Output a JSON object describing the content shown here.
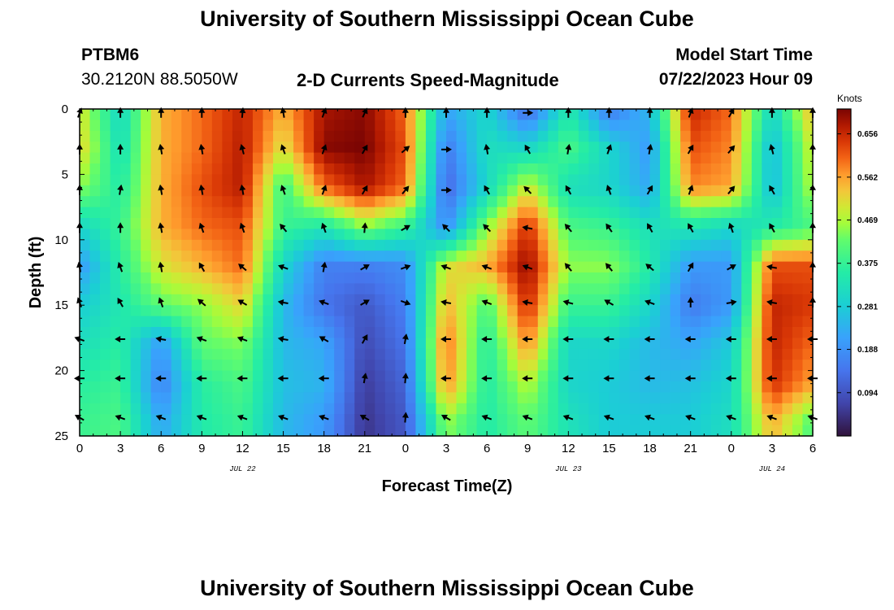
{
  "page": {
    "title": "University of Southern Mississippi Ocean Cube",
    "footer_title": "University of Southern Mississippi Ocean Cube",
    "station": "PTBM6",
    "coordinates": "30.2120N  88.5050W",
    "plot_title": "2-D Currents Speed-Magnitude",
    "model_start_label": "Model Start Time",
    "model_start_value": "07/22/2023 Hour 09"
  },
  "chart_data": {
    "type": "heatmap",
    "title": "2-D Currents Speed-Magnitude",
    "xlabel": "Forecast Time(Z)",
    "ylabel": "Depth (ft)",
    "xlim": [
      0,
      54
    ],
    "ylim": [
      25,
      0
    ],
    "x_ticks": [
      {
        "value": 0,
        "label": "0"
      },
      {
        "value": 3,
        "label": "3"
      },
      {
        "value": 6,
        "label": "6"
      },
      {
        "value": 9,
        "label": "9"
      },
      {
        "value": 12,
        "label": "12"
      },
      {
        "value": 15,
        "label": "15"
      },
      {
        "value": 18,
        "label": "18"
      },
      {
        "value": 21,
        "label": "21"
      },
      {
        "value": 24,
        "label": "0"
      },
      {
        "value": 27,
        "label": "3"
      },
      {
        "value": 30,
        "label": "6"
      },
      {
        "value": 33,
        "label": "9"
      },
      {
        "value": 36,
        "label": "12"
      },
      {
        "value": 39,
        "label": "15"
      },
      {
        "value": 42,
        "label": "18"
      },
      {
        "value": 45,
        "label": "21"
      },
      {
        "value": 48,
        "label": "0"
      },
      {
        "value": 51,
        "label": "3"
      },
      {
        "value": 54,
        "label": "6"
      }
    ],
    "date_labels": [
      {
        "value": 12,
        "label": "JUL 22"
      },
      {
        "value": 36,
        "label": "JUL 23"
      },
      {
        "value": 51,
        "label": "JUL 24"
      }
    ],
    "y_ticks": [
      0,
      5,
      10,
      15,
      20,
      25
    ],
    "colorbar": {
      "label": "Knots",
      "min": 0.0,
      "max": 0.71,
      "ticks": [
        "0.656",
        "0.562",
        "0.469",
        "0.375",
        "0.281",
        "0.188",
        "0.094"
      ]
    },
    "arrow_times": [
      0,
      3,
      6,
      9,
      12,
      15,
      18,
      21,
      24,
      27,
      30,
      33,
      36,
      39,
      42,
      45,
      48,
      51,
      54
    ],
    "arrow_depths": [
      0.3,
      3.1,
      6.2,
      9.1,
      12.1,
      14.8,
      17.6,
      20.6,
      23.6
    ],
    "speed_grid": {
      "times": [
        0,
        3,
        6,
        9,
        12,
        15,
        18,
        21,
        24,
        27,
        30,
        33,
        36,
        39,
        42,
        45,
        48,
        51,
        54
      ],
      "depths": [
        0,
        3,
        6,
        9,
        12,
        15,
        18,
        21,
        24,
        25
      ],
      "values": [
        [
          0.5,
          0.3,
          0.55,
          0.6,
          0.66,
          0.55,
          0.68,
          0.7,
          0.6,
          0.22,
          0.3,
          0.12,
          0.35,
          0.15,
          0.25,
          0.66,
          0.6,
          0.3,
          0.55
        ],
        [
          0.52,
          0.32,
          0.55,
          0.6,
          0.67,
          0.5,
          0.7,
          0.71,
          0.62,
          0.15,
          0.32,
          0.3,
          0.4,
          0.3,
          0.2,
          0.62,
          0.58,
          0.25,
          0.5
        ],
        [
          0.45,
          0.35,
          0.55,
          0.62,
          0.67,
          0.38,
          0.6,
          0.68,
          0.6,
          0.12,
          0.3,
          0.5,
          0.32,
          0.3,
          0.22,
          0.58,
          0.56,
          0.25,
          0.48
        ],
        [
          0.3,
          0.38,
          0.55,
          0.6,
          0.62,
          0.38,
          0.34,
          0.45,
          0.38,
          0.18,
          0.45,
          0.65,
          0.4,
          0.38,
          0.32,
          0.34,
          0.3,
          0.35,
          0.4
        ],
        [
          0.2,
          0.36,
          0.5,
          0.55,
          0.6,
          0.3,
          0.16,
          0.16,
          0.18,
          0.5,
          0.55,
          0.7,
          0.45,
          0.45,
          0.35,
          0.2,
          0.2,
          0.62,
          0.62
        ],
        [
          0.28,
          0.34,
          0.42,
          0.45,
          0.52,
          0.25,
          0.14,
          0.1,
          0.16,
          0.55,
          0.4,
          0.66,
          0.38,
          0.38,
          0.3,
          0.15,
          0.2,
          0.66,
          0.64
        ],
        [
          0.32,
          0.36,
          0.2,
          0.42,
          0.44,
          0.25,
          0.22,
          0.08,
          0.14,
          0.6,
          0.35,
          0.58,
          0.3,
          0.3,
          0.25,
          0.22,
          0.28,
          0.66,
          0.6
        ],
        [
          0.36,
          0.38,
          0.16,
          0.36,
          0.4,
          0.26,
          0.24,
          0.06,
          0.12,
          0.58,
          0.35,
          0.48,
          0.3,
          0.28,
          0.25,
          0.26,
          0.3,
          0.65,
          0.56
        ],
        [
          0.38,
          0.4,
          0.22,
          0.35,
          0.38,
          0.25,
          0.2,
          0.05,
          0.1,
          0.45,
          0.35,
          0.42,
          0.33,
          0.28,
          0.28,
          0.28,
          0.32,
          0.55,
          0.4
        ],
        [
          0.38,
          0.4,
          0.22,
          0.35,
          0.38,
          0.25,
          0.2,
          0.05,
          0.1,
          0.45,
          0.35,
          0.42,
          0.33,
          0.28,
          0.28,
          0.28,
          0.32,
          0.55,
          0.4
        ]
      ]
    },
    "arrow_directions_deg": [
      [
        110,
        90,
        90,
        90,
        95,
        80,
        110,
        115,
        90,
        90,
        90,
        180,
        90,
        90,
        90,
        110,
        120,
        90,
        90
      ],
      [
        90,
        90,
        80,
        80,
        75,
        70,
        110,
        120,
        140,
        180,
        80,
        60,
        100,
        110,
        100,
        120,
        130,
        75,
        90
      ],
      [
        90,
        100,
        80,
        80,
        80,
        70,
        110,
        120,
        130,
        180,
        60,
        45,
        60,
        70,
        120,
        110,
        130,
        60,
        90
      ],
      [
        90,
        90,
        80,
        70,
        70,
        50,
        70,
        95,
        150,
        45,
        45,
        10,
        50,
        55,
        60,
        60,
        70,
        60,
        90
      ],
      [
        80,
        70,
        80,
        60,
        40,
        20,
        100,
        150,
        160,
        20,
        20,
        20,
        50,
        50,
        40,
        120,
        150,
        10,
        90
      ],
      [
        70,
        60,
        70,
        40,
        30,
        10,
        20,
        150,
        200,
        10,
        20,
        10,
        15,
        30,
        20,
        90,
        170,
        10,
        90
      ],
      [
        20,
        0,
        10,
        20,
        20,
        10,
        30,
        120,
        100,
        0,
        0,
        0,
        0,
        0,
        0,
        0,
        0,
        0,
        0
      ],
      [
        0,
        0,
        0,
        0,
        0,
        0,
        0,
        100,
        95,
        0,
        0,
        0,
        0,
        0,
        0,
        0,
        0,
        0,
        0
      ],
      [
        30,
        20,
        20,
        20,
        20,
        20,
        20,
        30,
        95,
        30,
        20,
        20,
        20,
        20,
        20,
        20,
        20,
        20,
        20
      ]
    ]
  }
}
